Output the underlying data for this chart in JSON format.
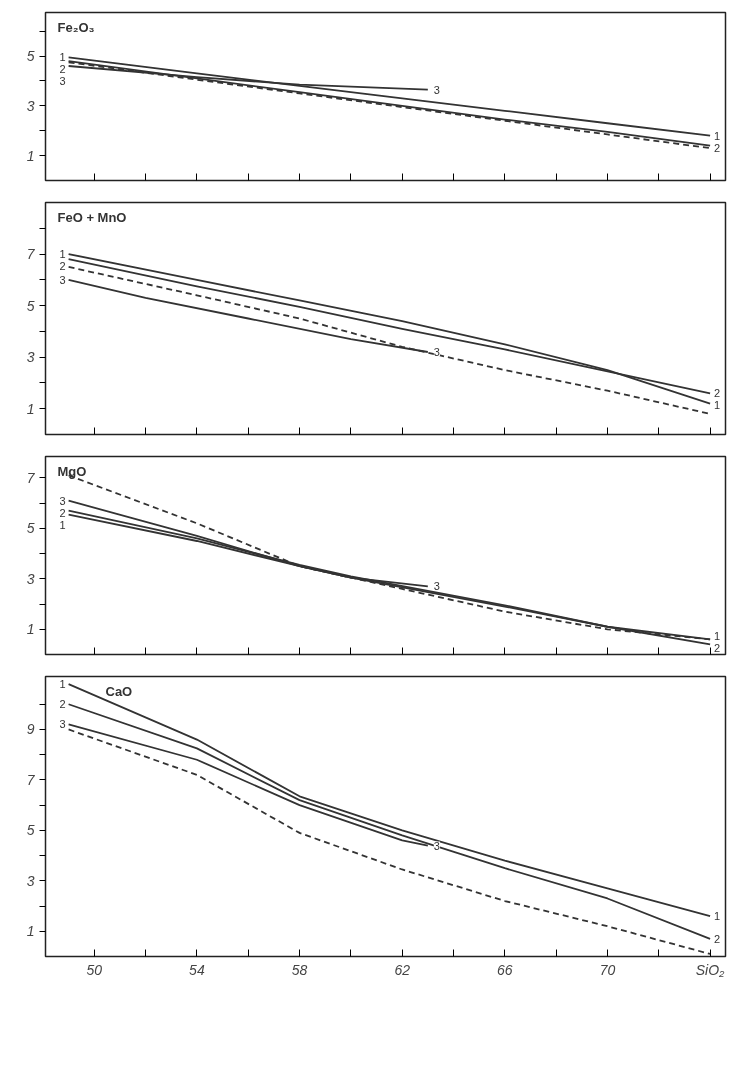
{
  "chart_data": [
    {
      "type": "line",
      "title": "Fe₂O₃",
      "tick_labels": "y",
      "grid": false,
      "line_style": "solid",
      "x": [
        49,
        54,
        58,
        62,
        66,
        70,
        74
      ],
      "xlim": [
        48.1,
        74.6
      ],
      "xticks": [
        {
          "value": 50,
          "label": null
        },
        {
          "value": 52,
          "label": null
        },
        {
          "value": 54,
          "label": null
        },
        {
          "value": 56,
          "label": null
        },
        {
          "value": 58,
          "label": null
        },
        {
          "value": 60,
          "label": null
        },
        {
          "value": 62,
          "label": null
        },
        {
          "value": 64,
          "label": null
        },
        {
          "value": 66,
          "label": null
        },
        {
          "value": 68,
          "label": null
        },
        {
          "value": 70,
          "label": null
        },
        {
          "value": 72,
          "label": null
        },
        {
          "value": 74,
          "label": null
        }
      ],
      "ylim": [
        0,
        6.75
      ],
      "yticks": [
        1,
        {
          "value": 2,
          "label": null
        },
        3,
        {
          "value": 4,
          "label": null
        },
        5,
        {
          "value": 6,
          "label": null
        }
      ],
      "series": [
        {
          "name": "1",
          "color": "#333333",
          "values": [
            4.95,
            4.3,
            3.8,
            3.3,
            2.8,
            2.3,
            1.8
          ]
        },
        {
          "name": "2",
          "color": "#333333",
          "values": [
            4.8,
            4.1,
            3.55,
            3.0,
            2.45,
            1.95,
            1.4
          ]
        },
        {
          "name": "3",
          "color": "#333333",
          "x": [
            49,
            54,
            58,
            63
          ],
          "values": [
            4.6,
            4.15,
            3.85,
            3.65
          ]
        },
        {
          "color": "#333333",
          "line_style": "dashed",
          "values": [
            4.75,
            4.05,
            3.5,
            2.95,
            2.4,
            1.85,
            1.3
          ]
        }
      ]
    },
    {
      "type": "line",
      "title": "FeO + MnO",
      "tick_labels": "y",
      "grid": false,
      "line_style": "solid",
      "x": [
        49,
        54,
        58,
        62,
        66,
        70,
        74
      ],
      "xlim": [
        48.1,
        74.6
      ],
      "xticks": [
        {
          "value": 50,
          "label": null
        },
        {
          "value": 52,
          "label": null
        },
        {
          "value": 54,
          "label": null
        },
        {
          "value": 56,
          "label": null
        },
        {
          "value": 58,
          "label": null
        },
        {
          "value": 60,
          "label": null
        },
        {
          "value": 62,
          "label": null
        },
        {
          "value": 64,
          "label": null
        },
        {
          "value": 66,
          "label": null
        },
        {
          "value": 68,
          "label": null
        },
        {
          "value": 70,
          "label": null
        },
        {
          "value": 72,
          "label": null
        },
        {
          "value": 74,
          "label": null
        }
      ],
      "ylim": [
        0,
        9.0
      ],
      "yticks": [
        1,
        {
          "value": 2,
          "label": null
        },
        3,
        {
          "value": 4,
          "label": null
        },
        5,
        {
          "value": 6,
          "label": null
        },
        7,
        {
          "value": 8,
          "label": null
        }
      ],
      "series": [
        {
          "name": "1",
          "color": "#333333",
          "values": [
            7.0,
            6.0,
            5.2,
            4.4,
            3.5,
            2.5,
            1.2
          ]
        },
        {
          "name": "2",
          "color": "#333333",
          "values": [
            6.8,
            5.75,
            4.95,
            4.1,
            3.3,
            2.45,
            1.6
          ]
        },
        {
          "name": "3",
          "color": "#333333",
          "x": [
            49,
            52,
            56,
            60,
            63
          ],
          "values": [
            6.0,
            5.3,
            4.5,
            3.7,
            3.2
          ]
        },
        {
          "color": "#333333",
          "line_style": "dashed",
          "values": [
            6.5,
            5.4,
            4.5,
            3.4,
            2.5,
            1.7,
            0.8
          ]
        }
      ]
    },
    {
      "type": "line",
      "title": "MgO",
      "tick_labels": "y",
      "grid": false,
      "line_style": "solid",
      "x": [
        49,
        54,
        58,
        60,
        66,
        70,
        74
      ],
      "xlim": [
        48.1,
        74.6
      ],
      "xticks": [
        {
          "value": 50,
          "label": null
        },
        {
          "value": 52,
          "label": null
        },
        {
          "value": 54,
          "label": null
        },
        {
          "value": 56,
          "label": null
        },
        {
          "value": 58,
          "label": null
        },
        {
          "value": 60,
          "label": null
        },
        {
          "value": 62,
          "label": null
        },
        {
          "value": 64,
          "label": null
        },
        {
          "value": 66,
          "label": null
        },
        {
          "value": 68,
          "label": null
        },
        {
          "value": 70,
          "label": null
        },
        {
          "value": 72,
          "label": null
        },
        {
          "value": 74,
          "label": null
        }
      ],
      "ylim": [
        0,
        7.85
      ],
      "yticks": [
        1,
        {
          "value": 2,
          "label": null
        },
        3,
        {
          "value": 4,
          "label": null
        },
        5,
        {
          "value": 6,
          "label": null
        },
        7
      ],
      "series": [
        {
          "name": "1",
          "color": "#333333",
          "values": [
            5.55,
            4.5,
            3.5,
            3.05,
            1.9,
            1.1,
            0.6
          ]
        },
        {
          "name": "2",
          "color": "#333333",
          "values": [
            5.7,
            4.6,
            3.55,
            3.1,
            1.95,
            1.1,
            0.4
          ]
        },
        {
          "name": "3",
          "color": "#333333",
          "x": [
            49,
            54,
            58,
            60,
            63
          ],
          "values": [
            6.1,
            4.7,
            3.5,
            3.05,
            2.7
          ]
        },
        {
          "color": "#333333",
          "line_style": "dashed",
          "x": [
            49,
            54,
            58,
            62,
            66,
            70,
            74
          ],
          "values": [
            7.1,
            5.2,
            3.5,
            2.6,
            1.7,
            1.0,
            0.6
          ]
        }
      ]
    },
    {
      "type": "line",
      "title": "CaO",
      "grid": false,
      "line_style": "solid",
      "x": [
        49,
        54,
        58,
        62,
        66,
        70,
        74
      ],
      "xlim": [
        48.1,
        74.6
      ],
      "xticks": [
        50,
        {
          "value": 52,
          "label": null
        },
        54,
        {
          "value": 56,
          "label": null
        },
        58,
        {
          "value": 60,
          "label": null
        },
        62,
        {
          "value": 64,
          "label": null
        },
        66,
        {
          "value": 68,
          "label": null
        },
        70,
        {
          "value": 72,
          "label": null
        },
        {
          "value": 74,
          "label": "SiO₂"
        }
      ],
      "ylim": [
        0,
        11.1
      ],
      "yticks": [
        1,
        {
          "value": 2,
          "label": null
        },
        3,
        {
          "value": 4,
          "label": null
        },
        5,
        {
          "value": 6,
          "label": null
        },
        7,
        {
          "value": 8,
          "label": null
        },
        9,
        {
          "value": 10,
          "label": null
        }
      ],
      "series": [
        {
          "name": "1",
          "color": "#333333",
          "values": [
            10.8,
            8.6,
            6.35,
            5.0,
            3.8,
            2.7,
            1.6
          ]
        },
        {
          "name": "2",
          "color": "#333333",
          "values": [
            10.0,
            8.25,
            6.2,
            4.8,
            3.5,
            2.3,
            0.7
          ]
        },
        {
          "name": "3",
          "color": "#333333",
          "x": [
            49,
            54,
            58,
            62,
            63
          ],
          "values": [
            9.2,
            7.8,
            6.0,
            4.6,
            4.4
          ]
        },
        {
          "color": "#333333",
          "line_style": "dashed",
          "values": [
            9.0,
            7.2,
            4.9,
            3.45,
            2.2,
            1.2,
            0.1
          ]
        }
      ]
    }
  ]
}
